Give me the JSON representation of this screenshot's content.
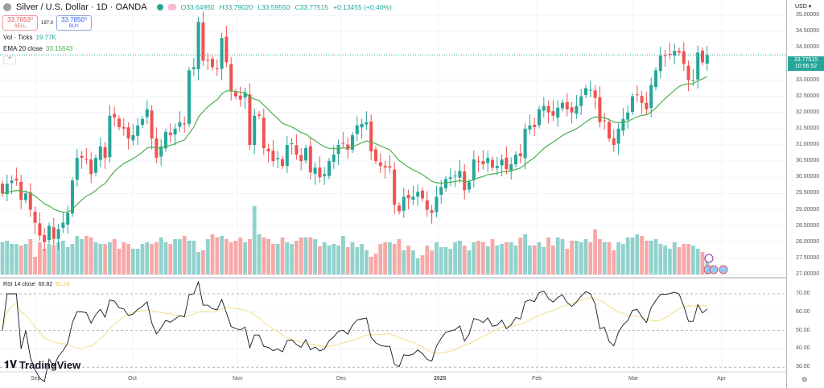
{
  "header": {
    "title": "Silver / U.S. Dollar · 1D · OANDA",
    "open": "O33.64950",
    "high": "H33.79020",
    "low": "L33.59550",
    "close": "C33.77515",
    "change": "+0.13455 (+0.40%)"
  },
  "trade": {
    "sell_price": "33.7653⁰",
    "sell_label": "SELL",
    "spread": "197.0",
    "buy_price": "33.7850⁰",
    "buy_label": "BUY"
  },
  "indicators": {
    "volume_label": "Vol · Ticks",
    "volume_value": "19.77K",
    "ema_label": "EMA 20 close",
    "ema_value": "33.15643",
    "rsi_label": "RSI 14 close",
    "rsi_value": "60.82",
    "rsi_ma_value": "61.24"
  },
  "axis": {
    "currency": "USD",
    "last_price": "33.77515",
    "countdown": "10:56:52"
  },
  "logo": "TradingView",
  "colors": {
    "up": "#26a69a",
    "down": "#ef5350",
    "ema": "#4caf50",
    "rsi": "#131722",
    "rsi_ma": "#f5e49c"
  },
  "chart_data": {
    "type": "candlestick",
    "price_ticks": [
      "35.00000",
      "34.50000",
      "34.00000",
      "33.00000",
      "32.50000",
      "32.00000",
      "31.50000",
      "31.00000",
      "30.50000",
      "30.00000",
      "29.50000",
      "29.00000",
      "28.50000",
      "28.00000",
      "27.50000",
      "27.00000"
    ],
    "price_range": [
      27,
      35
    ],
    "rsi_ticks": [
      "70.00",
      "60.00",
      "50.00",
      "40.00",
      "30.00"
    ],
    "x_ticks": [
      "Sep",
      "Oct",
      "Nov",
      "Dec",
      "2025",
      "Feb",
      "Mar",
      "Apr"
    ],
    "closes": [
      29.5,
      29.8,
      29.9,
      29.9,
      29.3,
      29.5,
      29.0,
      28.6,
      28.2,
      28.0,
      28.5,
      28.1,
      28.4,
      28.6,
      28.9,
      29.9,
      30.6,
      30.6,
      30.55,
      30.1,
      30.6,
      30.95,
      30.6,
      31.9,
      31.85,
      31.55,
      31.5,
      31.2,
      31.3,
      31.6,
      31.8,
      32.1,
      31.2,
      30.6,
      30.95,
      31.4,
      31.3,
      31.5,
      31.7,
      31.65,
      33.3,
      33.4,
      34.8,
      33.6,
      33.6,
      33.4,
      33.35,
      34.3,
      33.55,
      32.65,
      32.5,
      32.4,
      32.6,
      31.0,
      31.9,
      31.9,
      30.9,
      30.8,
      30.5,
      30.6,
      30.35,
      31.0,
      31.05,
      30.7,
      30.5,
      30.9,
      30.15,
      30.3,
      30.0,
      30.1,
      30.5,
      30.7,
      31.0,
      31.05,
      30.85,
      31.3,
      31.6,
      31.65,
      31.7,
      30.8,
      30.5,
      30.35,
      30.3,
      30.3,
      29.15,
      28.95,
      29.4,
      29.35,
      29.4,
      29.55,
      29.35,
      29.0,
      28.9,
      29.4,
      29.7,
      29.95,
      30.0,
      30.05,
      30.2,
      29.6,
      29.85,
      30.55,
      30.5,
      30.4,
      30.6,
      30.3,
      30.35,
      30.55,
      30.25,
      30.4,
      30.7,
      30.65,
      31.5,
      31.6,
      31.55,
      32.1,
      32.2,
      32.0,
      31.9,
      32.15,
      32.3,
      32.1,
      32.0,
      32.2,
      32.5,
      32.75,
      32.7,
      32.45,
      31.7,
      31.75,
      31.2,
      31.0,
      31.5,
      31.8,
      32.0,
      32.5,
      32.55,
      32.3,
      32.1,
      32.85,
      33.3,
      33.75,
      33.75,
      33.8,
      33.9,
      33.85,
      33.5,
      33.0,
      33.0,
      33.85,
      33.55,
      33.775
    ],
    "volumes_k": [
      40,
      42,
      38,
      38,
      36,
      38,
      44,
      22,
      40,
      32,
      38,
      36,
      40,
      42,
      34,
      38,
      48,
      44,
      48,
      46,
      40,
      38,
      38,
      40,
      44,
      32,
      40,
      38,
      32,
      32,
      38,
      40,
      38,
      40,
      46,
      40,
      38,
      44,
      44,
      48,
      42,
      42,
      28,
      30,
      44,
      50,
      46,
      48,
      44,
      40,
      42,
      46,
      40,
      44,
      85,
      50,
      46,
      44,
      38,
      38,
      46,
      40,
      38,
      42,
      46,
      46,
      46,
      44,
      35,
      40,
      36,
      38,
      36,
      48,
      34,
      40,
      34,
      38,
      30,
      22,
      26,
      38,
      40,
      40,
      38,
      44,
      30,
      36,
      30,
      20,
      24,
      36,
      30,
      40,
      34,
      34,
      32,
      40,
      42,
      36,
      30,
      40,
      42,
      40,
      35,
      44,
      36,
      38,
      40,
      40,
      36,
      46,
      50,
      36,
      36,
      40,
      34,
      46,
      36,
      46,
      44,
      32,
      42,
      42,
      40,
      44,
      40,
      56,
      44,
      40,
      40,
      30,
      40,
      38,
      46,
      46,
      50,
      48,
      42,
      42,
      44,
      38,
      36,
      32,
      40,
      34,
      38,
      38,
      36,
      32,
      28,
      20
    ],
    "rsi_period": 14,
    "ema_period": 20,
    "rsi_ma_period": 14
  }
}
